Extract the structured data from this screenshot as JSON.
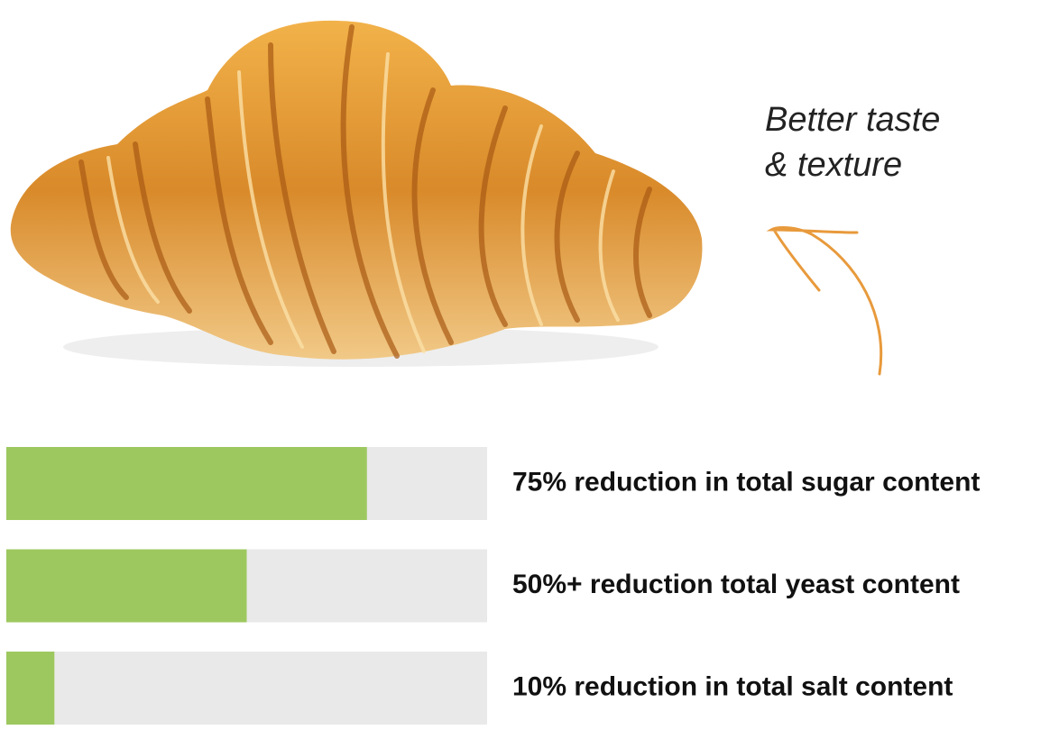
{
  "chart_data": {
    "type": "bar",
    "orientation": "horizontal",
    "annotation": [
      "Better taste",
      "& texture"
    ],
    "categories": [
      "75% reduction in total sugar content",
      "50%+ reduction total yeast content",
      "10% reduction in total salt content"
    ],
    "values": [
      75,
      50,
      10
    ],
    "xlim": [
      0,
      100
    ],
    "color": "#9dc85f",
    "track_color": "#e9e9e9",
    "arrow_color": "#e89a3c"
  }
}
